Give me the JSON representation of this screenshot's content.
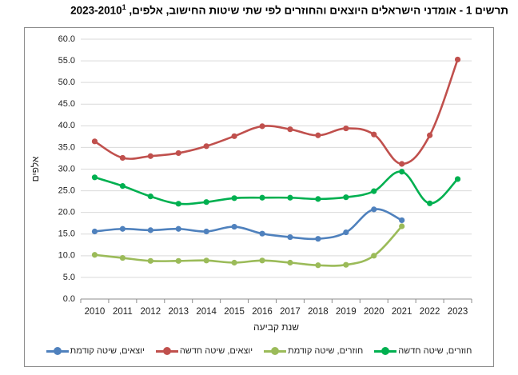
{
  "chart_data": {
    "type": "line",
    "title": "תרשים 1 - אומדני הישראלים היוצאים והחוזרים לפי שתי שיטות החישוב, אלפים, 2023-2010",
    "title_footnote": "1",
    "xlabel": "שנת קביעה",
    "ylabel": "אלפים",
    "ylim": [
      0,
      60
    ],
    "ytick_step": 5,
    "grid": true,
    "legend_position": "bottom",
    "x": [
      "2010",
      "2011",
      "2012",
      "2013",
      "2014",
      "2015",
      "2016",
      "2017",
      "2018",
      "2019",
      "2020",
      "2021",
      "2022",
      "2023"
    ],
    "y_tick_labels": [
      "0.0",
      "5.0",
      "10.0",
      "15.0",
      "20.0",
      "25.0",
      "30.0",
      "35.0",
      "40.0",
      "45.0",
      "50.0",
      "55.0",
      "60.0"
    ],
    "series": [
      {
        "name": "יוצאים, שיטה קודמת",
        "color": "#4f81bd",
        "values": [
          15.6,
          16.2,
          15.9,
          16.2,
          15.6,
          16.7,
          15.1,
          14.3,
          13.9,
          15.4,
          20.7,
          18.2,
          null,
          null
        ]
      },
      {
        "name": "יוצאים, שיטה חדשה",
        "color": "#c0504d",
        "values": [
          36.4,
          32.6,
          33.0,
          33.7,
          35.3,
          37.6,
          39.9,
          39.2,
          37.8,
          39.4,
          38.0,
          31.2,
          37.8,
          55.3
        ]
      },
      {
        "name": "חוזרים, שיטה קודמת",
        "color": "#9bbb59",
        "values": [
          10.2,
          9.5,
          8.8,
          8.8,
          8.9,
          8.4,
          8.9,
          8.4,
          7.8,
          7.9,
          10.0,
          16.8,
          null,
          null
        ]
      },
      {
        "name": "חוזרים, שיטה חדשה",
        "color": "#00b050",
        "values": [
          28.1,
          26.1,
          23.7,
          22.0,
          22.4,
          23.3,
          23.4,
          23.4,
          23.1,
          23.5,
          24.9,
          29.4,
          22.1,
          27.7
        ]
      }
    ]
  }
}
